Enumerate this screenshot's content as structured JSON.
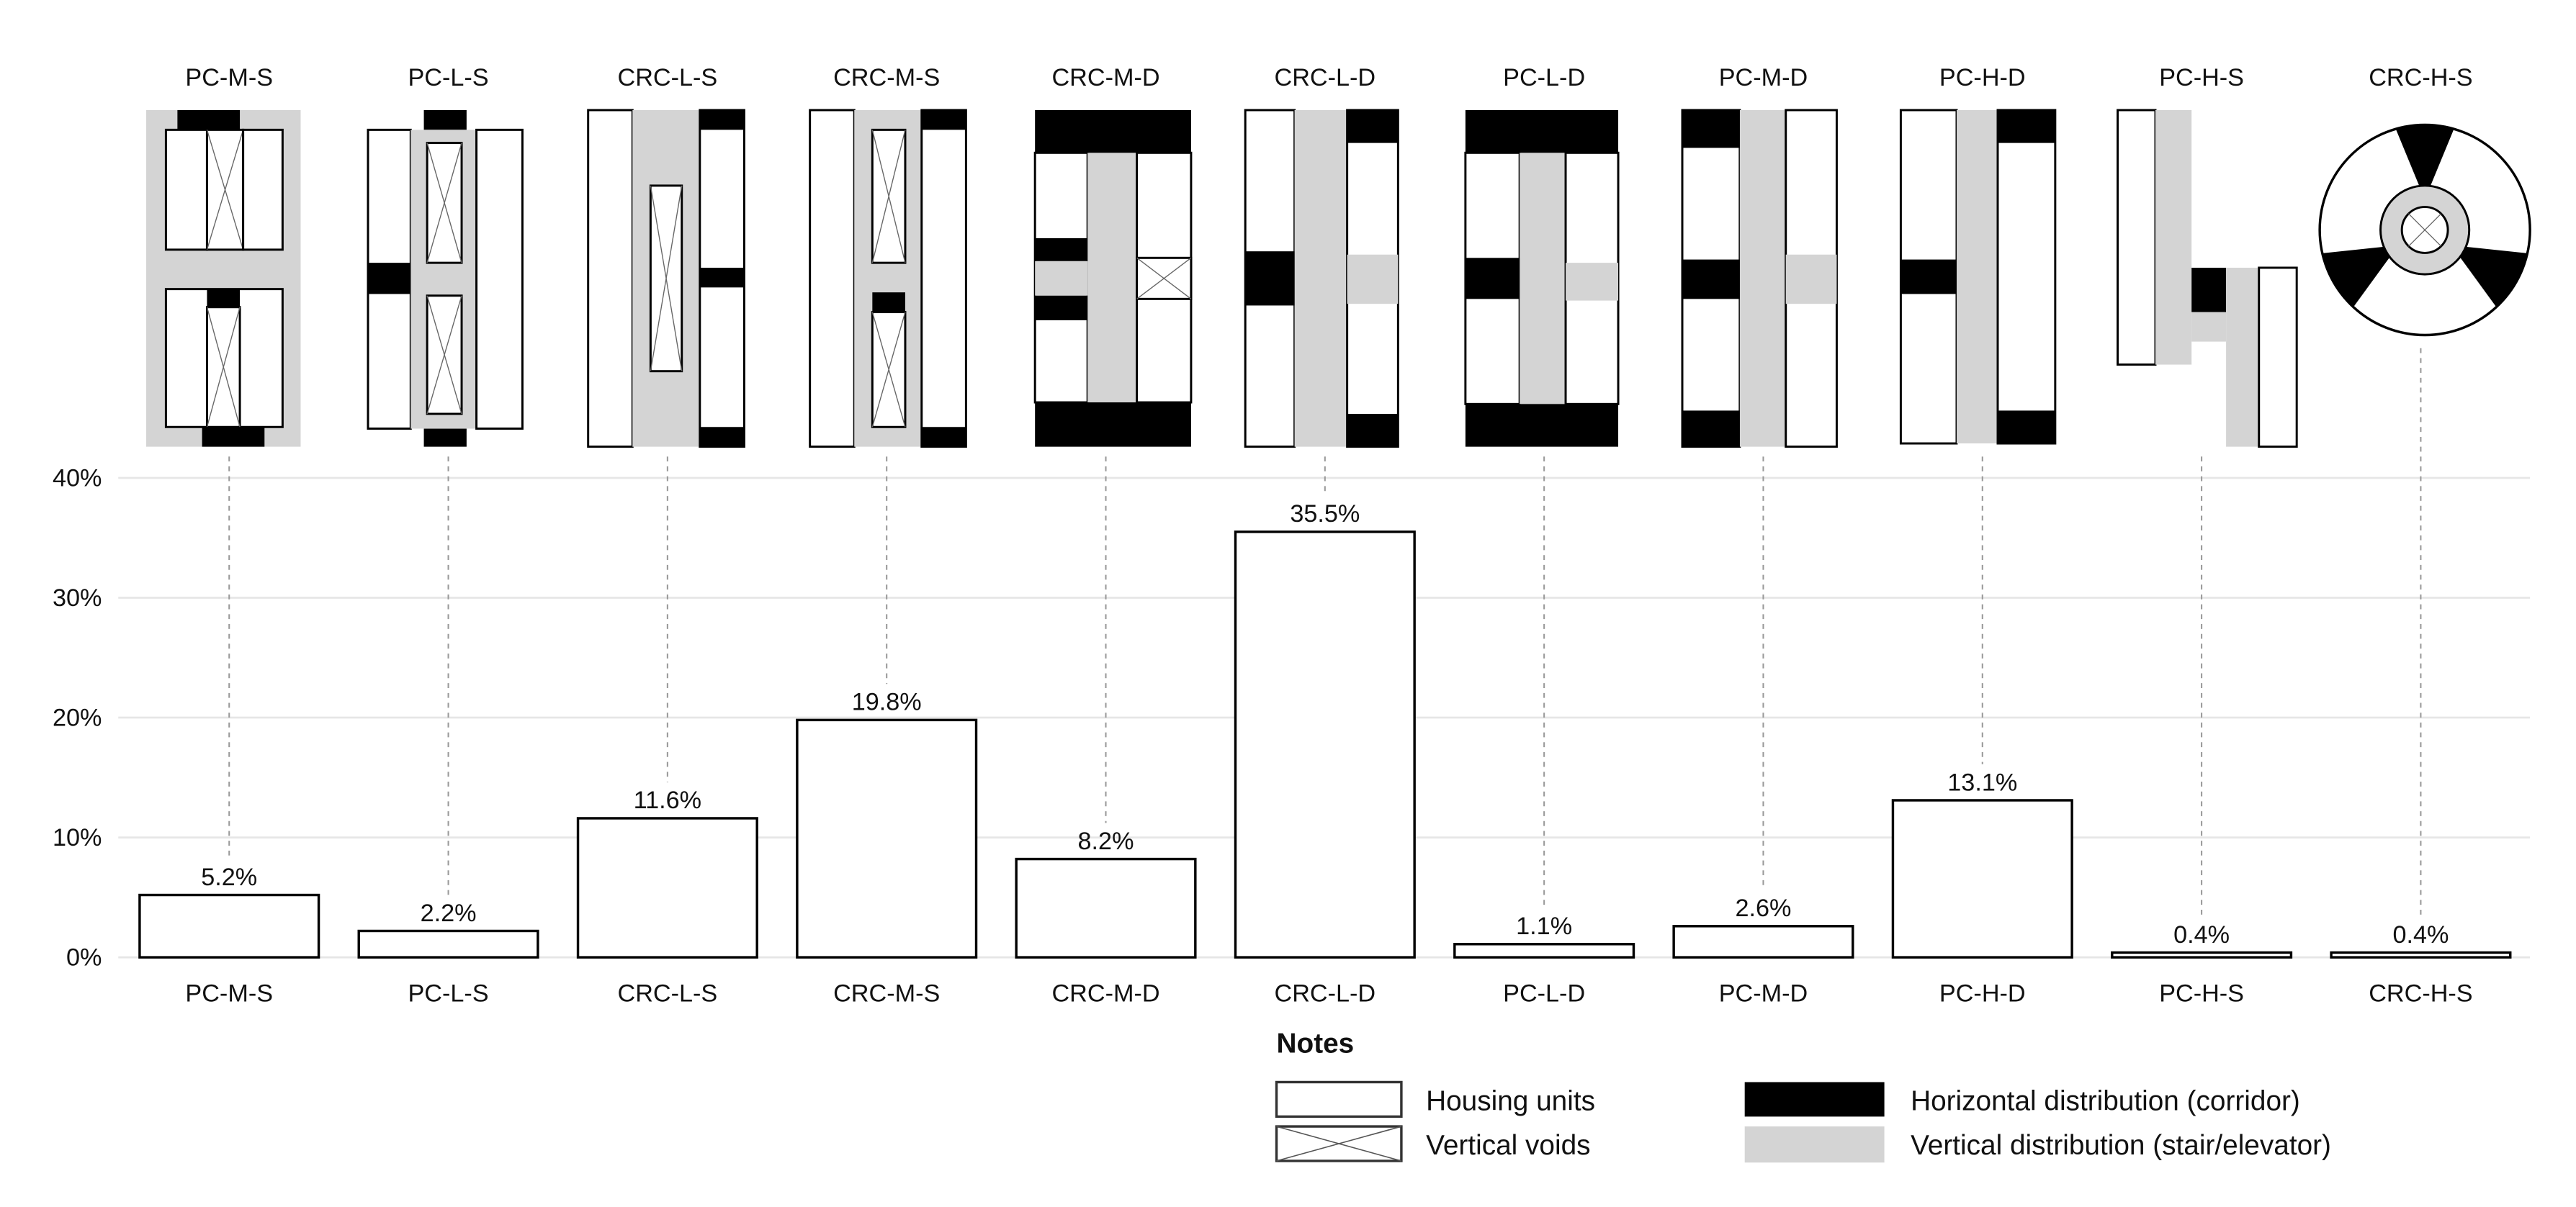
{
  "chart_data": {
    "type": "bar",
    "title": "",
    "xlabel": "",
    "ylabel": "",
    "ylim": [
      0,
      40
    ],
    "yticks": [
      "0%",
      "10%",
      "20%",
      "30%",
      "40%"
    ],
    "ytick_values": [
      0,
      10,
      20,
      30,
      40
    ],
    "grid": true,
    "categories": [
      "PC-M-S",
      "PC-L-S",
      "CRC-L-S",
      "CRC-M-S",
      "CRC-M-D",
      "CRC-L-D",
      "PC-L-D",
      "PC-M-D",
      "PC-H-D",
      "PC-H-S",
      "CRC-H-S"
    ],
    "values": [
      5.2,
      2.2,
      11.6,
      19.8,
      8.2,
      35.5,
      1.1,
      2.6,
      13.1,
      0.4,
      0.4
    ],
    "data_labels": [
      "5.2%",
      "2.2%",
      "11.6%",
      "19.8%",
      "8.2%",
      "35.5%",
      "1.1%",
      "2.6%",
      "13.1%",
      "0.4%",
      "0.4%"
    ],
    "legend_placement": "bottom-center"
  },
  "legend": {
    "title": "Notes",
    "items": [
      {
        "label": "Housing units",
        "swatch": "housing"
      },
      {
        "label": "Vertical voids",
        "swatch": "void"
      },
      {
        "label": "Horizontal distribution (corridor)",
        "swatch": "corridor"
      },
      {
        "label": "Vertical distribution (stair/elevator)",
        "swatch": "stair"
      }
    ]
  },
  "colors": {
    "housing": "#ffffff",
    "corridor": "#000000",
    "stair": "#d4d4d4",
    "grid": "#e6e6e6",
    "bar_stroke": "#000000"
  }
}
